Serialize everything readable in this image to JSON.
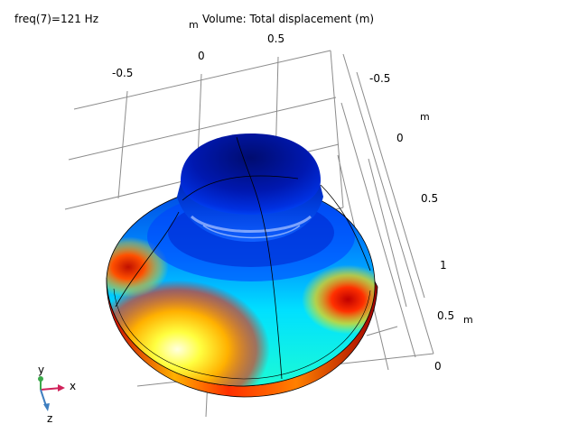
{
  "header": {
    "freq_label": "freq(7)=121 Hz",
    "plot_title": "Volume: Total displacement (m)"
  },
  "axes": {
    "top_axis": {
      "unit": "m",
      "ticks": [
        "-0.5",
        "0",
        "0.5"
      ]
    },
    "right_axis": {
      "unit": "m",
      "ticks": [
        "-0.5",
        "0",
        "0.5",
        "1"
      ]
    },
    "depth_axis": {
      "unit": "m",
      "ticks": [
        "0.5",
        "0"
      ]
    }
  },
  "triad": {
    "x_label": "x",
    "y_label": "y",
    "z_label": "z",
    "x_color": "#d0225a",
    "y_color": "#3aa84a",
    "z_color": "#3f7fc0"
  },
  "colormap": {
    "low": "#000080",
    "mid_low": "#0060ff",
    "mid": "#00e0ff",
    "mid_high": "#ffff00",
    "high": "#ff0000"
  }
}
